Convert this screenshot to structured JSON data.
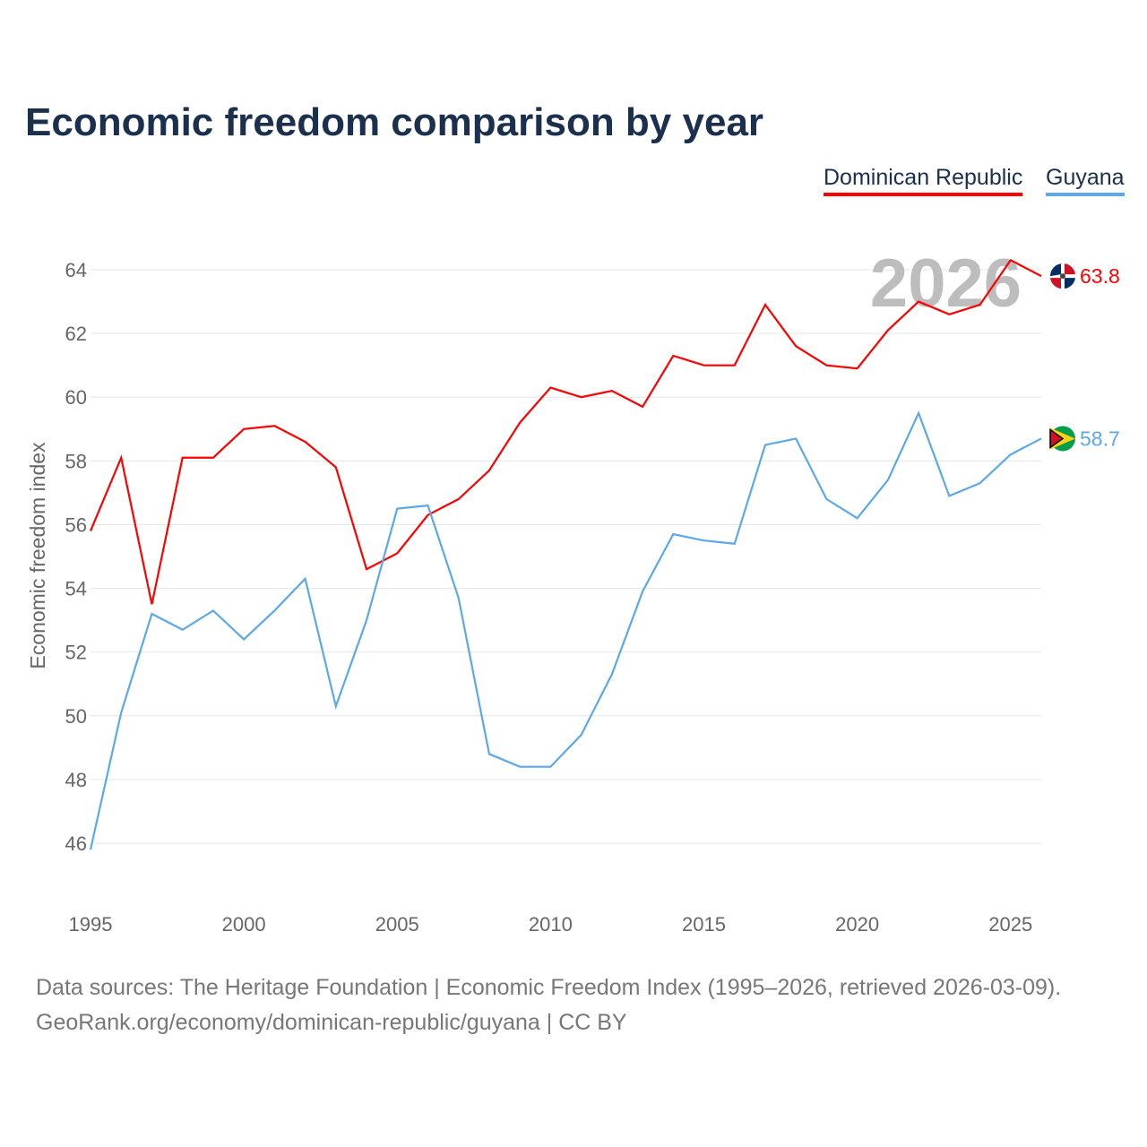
{
  "chart_data": {
    "type": "line",
    "title": "Economic freedom comparison by year",
    "xlabel": "",
    "ylabel": "Economic freedom index",
    "xlim": [
      1995,
      2026
    ],
    "ylim": [
      46,
      64
    ],
    "grid": true,
    "legend_position": "top-right",
    "x_ticks": [
      1995,
      2000,
      2005,
      2010,
      2015,
      2020,
      2025
    ],
    "y_ticks": [
      46,
      48,
      50,
      52,
      54,
      56,
      58,
      60,
      62,
      64
    ],
    "year_watermark": "2026",
    "x": [
      1995,
      1996,
      1997,
      1998,
      1999,
      2000,
      2001,
      2002,
      2003,
      2004,
      2005,
      2006,
      2007,
      2008,
      2009,
      2010,
      2011,
      2012,
      2013,
      2014,
      2015,
      2016,
      2017,
      2018,
      2019,
      2020,
      2021,
      2022,
      2023,
      2024,
      2025,
      2026
    ],
    "series": [
      {
        "name": "Dominican Republic",
        "color": "#ff0000",
        "end_label": "63.8",
        "values": [
          55.8,
          58.1,
          53.5,
          58.1,
          58.1,
          59.0,
          59.1,
          58.6,
          57.8,
          54.6,
          55.1,
          56.3,
          56.8,
          57.7,
          59.2,
          60.3,
          60.0,
          60.2,
          59.7,
          61.3,
          61.0,
          61.0,
          62.9,
          61.6,
          61.0,
          60.9,
          62.1,
          63.0,
          62.6,
          62.9,
          64.3,
          63.8
        ]
      },
      {
        "name": "Guyana",
        "color": "#5ca8ea",
        "end_label": "58.7",
        "values": [
          45.8,
          50.1,
          53.2,
          52.7,
          53.3,
          52.4,
          53.3,
          54.3,
          50.3,
          53.0,
          56.5,
          56.6,
          53.7,
          48.8,
          48.4,
          48.4,
          49.4,
          51.3,
          53.9,
          55.7,
          55.5,
          55.4,
          58.5,
          58.7,
          56.8,
          56.2,
          57.4,
          59.5,
          56.9,
          57.3,
          58.2,
          58.7
        ]
      }
    ]
  },
  "footer": {
    "line1": "Data sources: The Heritage Foundation | Economic Freedom Index (1995–2026, retrieved 2026-03-09).",
    "line2": "GeoRank.org/economy/dominican-republic/guyana | CC BY"
  }
}
